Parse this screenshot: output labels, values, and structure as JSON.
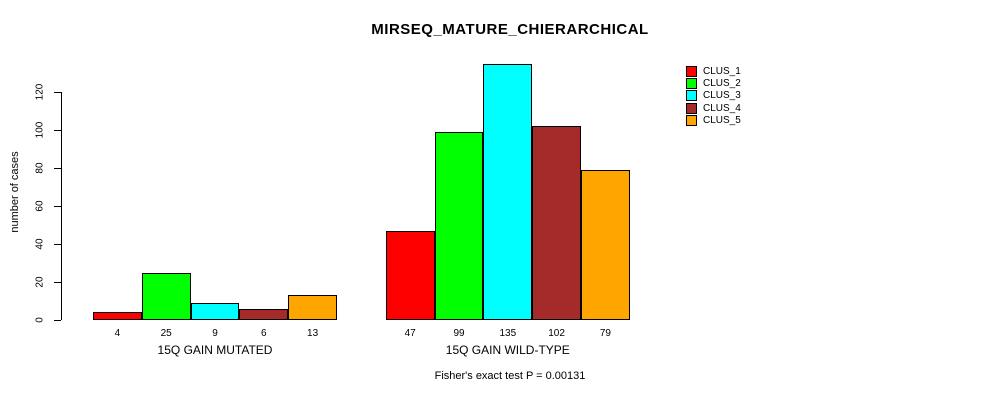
{
  "figure": {
    "background": "#ffffff",
    "text_color": "#000000"
  },
  "chart_data": {
    "type": "bar",
    "title": "MIRSEQ_MATURE_CHIERARCHICAL",
    "ylabel": "number of cases",
    "xlabel": "",
    "annotation": "Fisher's exact test P = 0.00131",
    "ylim": [
      0,
      135
    ],
    "yticks": [
      0,
      20,
      40,
      60,
      80,
      100,
      120
    ],
    "grid": false,
    "legend_position": "top-right",
    "bar_value_labels_shown": true,
    "categories": [
      "15Q GAIN MUTATED",
      "15Q GAIN WILD-TYPE"
    ],
    "series": [
      {
        "name": "CLUS_1",
        "color": "#ff0000",
        "values": [
          4,
          47
        ]
      },
      {
        "name": "CLUS_2",
        "color": "#00ff00",
        "values": [
          25,
          99
        ]
      },
      {
        "name": "CLUS_3",
        "color": "#00ffff",
        "values": [
          9,
          135
        ]
      },
      {
        "name": "CLUS_4",
        "color": "#a52a2a",
        "values": [
          6,
          102
        ]
      },
      {
        "name": "CLUS_5",
        "color": "#ffa500",
        "values": [
          13,
          79
        ]
      }
    ]
  }
}
